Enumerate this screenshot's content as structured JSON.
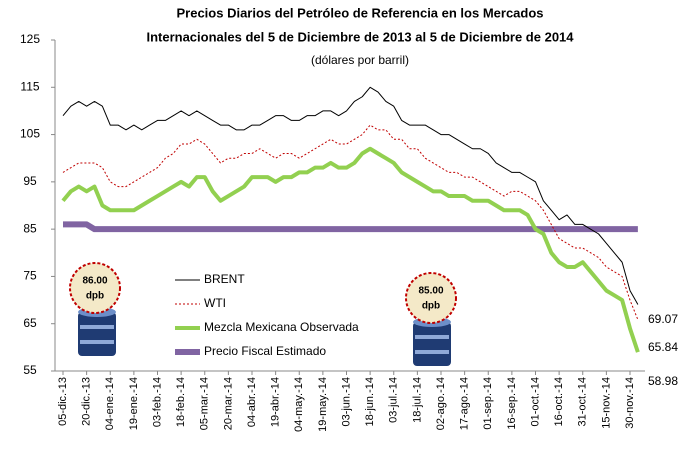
{
  "chart_data": {
    "type": "line",
    "title": [
      "Precios Diarios del Petróleo de Referencia en los Mercados",
      "Internacionales del 5 de Diciembre de 2013 al 5 de Diciembre de 2014"
    ],
    "subtitle": "(dólares por barril)",
    "categories": [
      "05-dic.-13",
      null,
      null,
      "20-dic.-13",
      null,
      null,
      "04-ene.-14",
      null,
      null,
      "19-ene.-14",
      null,
      null,
      "03-feb.-14",
      null,
      null,
      "18-feb.-14",
      null,
      null,
      "05-mar.-14",
      null,
      null,
      "20-mar.-14",
      null,
      null,
      "04-abr.-14",
      null,
      null,
      "19-abr.-14",
      null,
      null,
      "04-may.-14",
      null,
      null,
      "19-may.-14",
      null,
      null,
      "03-jun.-14",
      null,
      null,
      "18-jun.-14",
      null,
      null,
      "03-jul.-14",
      null,
      null,
      "18-jul.-14",
      null,
      null,
      "02-ago.-14",
      null,
      null,
      "17-ago.-14",
      null,
      null,
      "01-sep.-14",
      null,
      null,
      "16-sep.-14",
      null,
      null,
      "01-oct.-14",
      null,
      null,
      "16-oct.-14",
      null,
      null,
      "31-oct.-14",
      null,
      null,
      "15-nov.-14",
      null,
      null,
      "30-nov.-14",
      null
    ],
    "series": [
      {
        "name": "BRENT",
        "color": "#000000",
        "values": [
          109,
          111,
          112,
          111,
          112,
          111,
          107,
          107,
          106,
          107,
          106,
          107,
          108,
          108,
          109,
          110,
          109,
          110,
          109,
          108,
          107,
          107,
          106,
          106,
          107,
          107,
          108,
          109,
          109,
          108,
          108,
          109,
          109,
          110,
          110,
          109,
          110,
          112,
          113,
          115,
          114,
          112,
          111,
          108,
          107,
          107,
          107,
          106,
          105,
          105,
          104,
          103,
          102,
          102,
          101,
          99,
          98,
          97,
          97,
          96,
          95,
          91,
          89,
          87,
          88,
          86,
          86,
          85,
          84,
          82,
          80,
          78,
          72,
          69.07
        ]
      },
      {
        "name": "WTI",
        "color": "#c00000",
        "values": [
          97,
          98,
          99,
          99,
          99,
          98,
          95,
          94,
          94,
          95,
          96,
          97,
          98,
          100,
          101,
          103,
          103,
          104,
          103,
          101,
          99,
          100,
          100,
          101,
          101,
          102,
          101,
          100,
          101,
          101,
          100,
          101,
          102,
          103,
          104,
          103,
          103,
          104,
          105,
          107,
          106,
          106,
          104,
          104,
          102,
          102,
          100,
          99,
          98,
          97,
          97,
          96,
          96,
          95,
          94,
          93,
          92,
          93,
          93,
          92,
          91,
          89,
          86,
          83,
          82,
          81,
          81,
          80,
          79,
          77,
          76,
          75,
          70,
          65.84
        ]
      },
      {
        "name": "Mezcla Mexicana Observada",
        "color": "#92d050",
        "values": [
          91,
          93,
          94,
          93,
          94,
          90,
          89,
          89,
          89,
          89,
          90,
          91,
          92,
          93,
          94,
          95,
          94,
          96,
          96,
          93,
          91,
          92,
          93,
          94,
          96,
          96,
          96,
          95,
          96,
          96,
          97,
          97,
          98,
          98,
          99,
          98,
          98,
          99,
          101,
          102,
          101,
          100,
          99,
          97,
          96,
          95,
          94,
          93,
          93,
          92,
          92,
          92,
          91,
          91,
          91,
          90,
          89,
          89,
          89,
          88,
          85,
          84,
          80,
          78,
          77,
          77,
          78,
          76,
          74,
          72,
          71,
          70,
          64,
          58.98
        ]
      },
      {
        "name": "Precio Fiscal Estimado",
        "color": "#8064a2",
        "values": [
          86,
          86,
          86,
          86,
          85,
          85,
          85,
          85,
          85,
          85,
          85,
          85,
          85,
          85,
          85,
          85,
          85,
          85,
          85,
          85,
          85,
          85,
          85,
          85,
          85,
          85,
          85,
          85,
          85,
          85,
          85,
          85,
          85,
          85,
          85,
          85,
          85,
          85,
          85,
          85,
          85,
          85,
          85,
          85,
          85,
          85,
          85,
          85,
          85,
          85,
          85,
          85,
          85,
          85,
          85,
          85,
          85,
          85,
          85,
          85,
          85,
          85,
          85,
          85,
          85,
          85,
          85,
          85,
          85,
          85,
          85,
          85,
          85,
          85
        ]
      }
    ],
    "annotations": [
      [
        "86.00",
        "dpb"
      ],
      [
        "85.00",
        "dpb"
      ]
    ],
    "ylim": [
      55,
      125
    ],
    "yticks": [
      55,
      65,
      75,
      85,
      95,
      105,
      115,
      125
    ],
    "grid": false
  }
}
